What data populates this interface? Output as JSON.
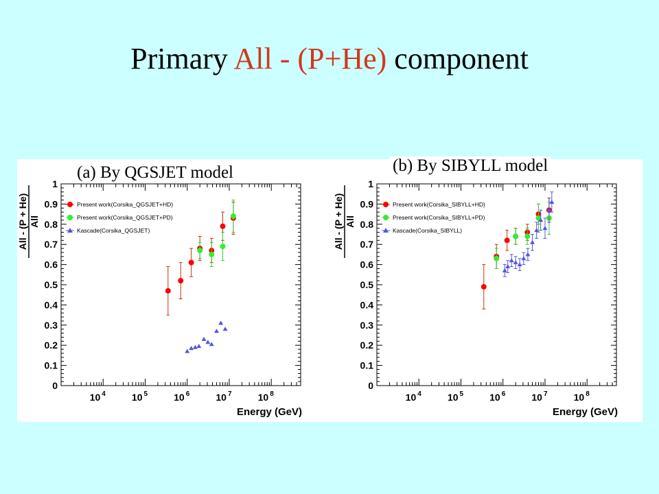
{
  "slide": {
    "title_part1": "Primary",
    "title_part2": "All - (P+He)",
    "title_part3": "component",
    "accent_color": "#d0391b",
    "background_color": "#ccffff"
  },
  "chart_data": [
    {
      "type": "scatter",
      "caption": "(a) By QGSJET model",
      "xlabel": "Energy (GeV)",
      "ylabel_top": "All - (P + He)",
      "ylabel_bottom": "All",
      "x_scale": "log",
      "xlim": [
        1000,
        500000000
      ],
      "ylim": [
        0,
        1
      ],
      "x_ticks": [
        {
          "exp": "4",
          "value": 10000
        },
        {
          "exp": "5",
          "value": 100000
        },
        {
          "exp": "6",
          "value": 1000000
        },
        {
          "exp": "7",
          "value": 10000000
        },
        {
          "exp": "8",
          "value": 100000000
        }
      ],
      "y_ticks": [
        "0",
        "0.1",
        "0.2",
        "0.3",
        "0.4",
        "0.5",
        "0.6",
        "0.7",
        "0.8",
        "0.9",
        "1"
      ],
      "legend_position": "top-left",
      "series": [
        {
          "name": "Present work(Corsika_QGSJET+HD)",
          "color": "#ff0000",
          "marker": "circle",
          "err_color": "#cc3300",
          "points": [
            {
              "x": 350000,
              "y": 0.47,
              "err": 0.12
            },
            {
              "x": 700000,
              "y": 0.52,
              "err": 0.09
            },
            {
              "x": 1250000,
              "y": 0.61,
              "err": 0.07
            },
            {
              "x": 2000000,
              "y": 0.68,
              "err": 0.06
            },
            {
              "x": 3800000,
              "y": 0.67,
              "err": 0.06
            },
            {
              "x": 7000000,
              "y": 0.79,
              "err": 0.07
            },
            {
              "x": 12500000,
              "y": 0.83,
              "err": 0.08
            }
          ]
        },
        {
          "name": "Present work(Corsika_QGSJET+PD)",
          "color": "#33ee33",
          "marker": "circle",
          "err_color": "#33cc33",
          "points": [
            {
              "x": 2000000,
              "y": 0.67,
              "err": 0.04
            },
            {
              "x": 3800000,
              "y": 0.65,
              "err": 0.06
            },
            {
              "x": 7000000,
              "y": 0.69,
              "err": 0.07
            },
            {
              "x": 12500000,
              "y": 0.84,
              "err": 0.08
            }
          ]
        },
        {
          "name": "Kascade(Corsika_QGSJET)",
          "color": "#5555dd",
          "marker": "triangle",
          "err_color": "#5555dd",
          "points": [
            {
              "x": 1000000,
              "y": 0.17,
              "err": 0
            },
            {
              "x": 1250000,
              "y": 0.185,
              "err": 0
            },
            {
              "x": 1550000,
              "y": 0.19,
              "err": 0
            },
            {
              "x": 1900000,
              "y": 0.195,
              "err": 0
            },
            {
              "x": 2500000,
              "y": 0.23,
              "err": 0
            },
            {
              "x": 3100000,
              "y": 0.215,
              "err": 0
            },
            {
              "x": 3800000,
              "y": 0.205,
              "err": 0
            },
            {
              "x": 5000000,
              "y": 0.27,
              "err": 0
            },
            {
              "x": 6300000,
              "y": 0.31,
              "err": 0
            },
            {
              "x": 8000000,
              "y": 0.28,
              "err": 0
            }
          ]
        }
      ]
    },
    {
      "type": "scatter",
      "caption": "(b)  By SIBYLL model",
      "xlabel": "Energy (GeV)",
      "ylabel_top": "All - (P + He)",
      "ylabel_bottom": "All",
      "x_scale": "log",
      "xlim": [
        1000,
        500000000
      ],
      "ylim": [
        0,
        1
      ],
      "x_ticks": [
        {
          "exp": "4",
          "value": 10000
        },
        {
          "exp": "5",
          "value": 100000
        },
        {
          "exp": "6",
          "value": 1000000
        },
        {
          "exp": "7",
          "value": 10000000
        },
        {
          "exp": "8",
          "value": 100000000
        }
      ],
      "y_ticks": [
        "0",
        "0.1",
        "0.2",
        "0.3",
        "0.4",
        "0.5",
        "0.6",
        "0.7",
        "0.8",
        "0.9",
        "1"
      ],
      "legend_position": "top-left",
      "series": [
        {
          "name": "Present work(Corsika_SIBYLL+HD)",
          "color": "#ff0000",
          "marker": "circle",
          "err_color": "#cc3300",
          "points": [
            {
              "x": 350000,
              "y": 0.49,
              "err": 0.11
            },
            {
              "x": 700000,
              "y": 0.64,
              "err": 0.06
            },
            {
              "x": 1250000,
              "y": 0.72,
              "err": 0.05
            },
            {
              "x": 2000000,
              "y": 0.74,
              "err": 0.04
            },
            {
              "x": 3800000,
              "y": 0.76,
              "err": 0.04
            },
            {
              "x": 7000000,
              "y": 0.85,
              "err": 0.05
            },
            {
              "x": 12500000,
              "y": 0.87,
              "err": 0.06
            }
          ]
        },
        {
          "name": "Present work(Corsika_SIBYLL+PD)",
          "color": "#33ee33",
          "marker": "circle",
          "err_color": "#33cc33",
          "points": [
            {
              "x": 700000,
              "y": 0.63,
              "err": 0.05
            },
            {
              "x": 2000000,
              "y": 0.74,
              "err": 0.04
            },
            {
              "x": 3800000,
              "y": 0.74,
              "err": 0.04
            },
            {
              "x": 7000000,
              "y": 0.83,
              "err": 0.07
            },
            {
              "x": 12500000,
              "y": 0.83,
              "err": 0.08
            }
          ]
        },
        {
          "name": "Kascade(Corsika_SIBYLL)",
          "color": "#5555dd",
          "marker": "triangle",
          "err_color": "#5555dd",
          "points": [
            {
              "x": 1100000,
              "y": 0.57,
              "err": 0.03
            },
            {
              "x": 1300000,
              "y": 0.59,
              "err": 0.03
            },
            {
              "x": 1600000,
              "y": 0.62,
              "err": 0.03
            },
            {
              "x": 2000000,
              "y": 0.61,
              "err": 0.03
            },
            {
              "x": 2500000,
              "y": 0.6,
              "err": 0.03
            },
            {
              "x": 3100000,
              "y": 0.63,
              "err": 0.03
            },
            {
              "x": 3900000,
              "y": 0.65,
              "err": 0.03
            },
            {
              "x": 5000000,
              "y": 0.71,
              "err": 0.04
            },
            {
              "x": 6300000,
              "y": 0.77,
              "err": 0.04
            },
            {
              "x": 7900000,
              "y": 0.82,
              "err": 0.05
            },
            {
              "x": 10000000,
              "y": 0.78,
              "err": 0.05
            },
            {
              "x": 12500000,
              "y": 0.87,
              "err": 0.06
            },
            {
              "x": 14500000,
              "y": 0.91,
              "err": 0.05
            }
          ]
        }
      ]
    }
  ]
}
